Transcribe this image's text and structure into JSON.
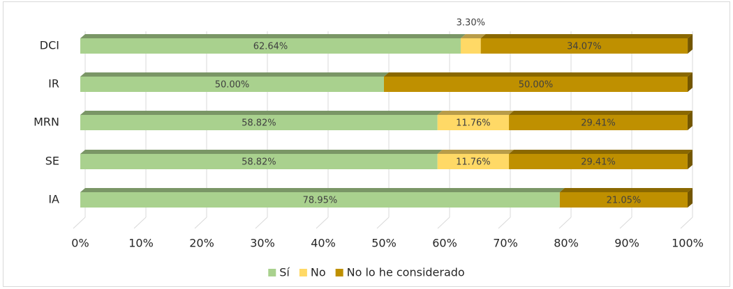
{
  "chart_data": {
    "type": "stacked_barh",
    "categories": [
      "DCI",
      "IR",
      "MRN",
      "SE",
      "IA"
    ],
    "series": [
      {
        "name": "Sí",
        "color": "#a9d18e",
        "values": [
          62.64,
          50.0,
          58.82,
          58.82,
          78.95
        ],
        "value_labels": [
          "62.64%",
          "50.00%",
          "58.82%",
          "58.82%",
          "78.95%"
        ]
      },
      {
        "name": "No",
        "color": "#ffd966",
        "values": [
          3.3,
          null,
          11.76,
          11.76,
          null
        ],
        "value_labels": [
          "3.30%",
          null,
          "11.76%",
          "11.76%",
          null
        ]
      },
      {
        "name": "No lo he considerado",
        "color": "#bf9000",
        "values": [
          34.07,
          50.0,
          29.41,
          29.41,
          21.05
        ],
        "value_labels": [
          "34.07%",
          "50.00%",
          "29.41%",
          "29.41%",
          "21.05%"
        ]
      }
    ],
    "xlim": [
      0,
      100
    ],
    "xticks": [
      {
        "value": 0,
        "label": "0%"
      },
      {
        "value": 10,
        "label": "10%"
      },
      {
        "value": 20,
        "label": "20%"
      },
      {
        "value": 30,
        "label": "30%"
      },
      {
        "value": 40,
        "label": "40%"
      },
      {
        "value": 50,
        "label": "50%"
      },
      {
        "value": 60,
        "label": "60%"
      },
      {
        "value": 70,
        "label": "70%"
      },
      {
        "value": 80,
        "label": "80%"
      },
      {
        "value": 90,
        "label": "90%"
      },
      {
        "value": 100,
        "label": "100%"
      }
    ],
    "grid": true,
    "legend": "bottom"
  }
}
